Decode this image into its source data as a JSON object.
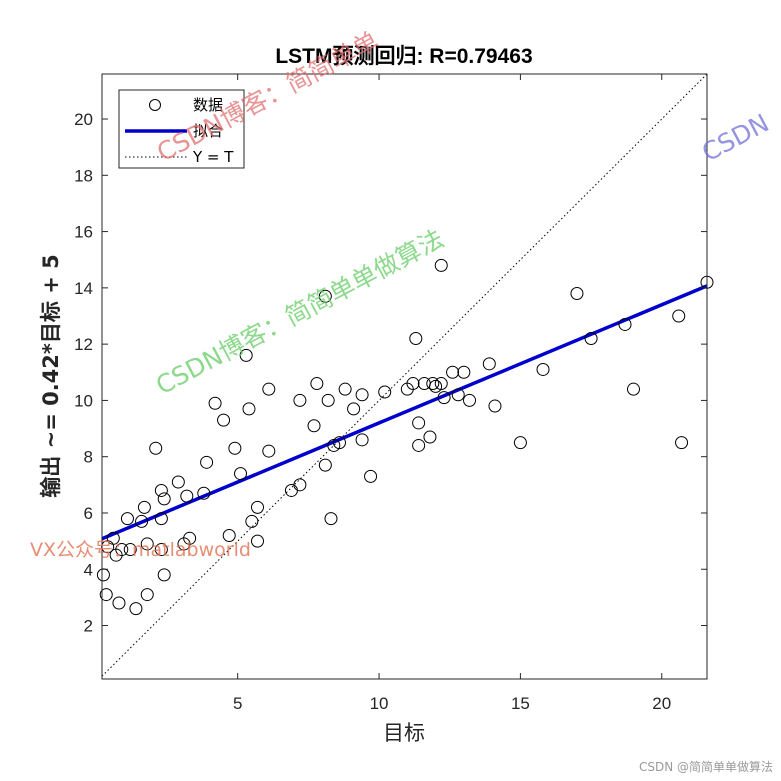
{
  "chart_data": {
    "type": "scatter",
    "title": "LSTM预测回归: R=0.79463",
    "xlabel": "目标",
    "ylabel": "输出 ~= 0.42*目标 + 5",
    "xlim": [
      0.2,
      21.6
    ],
    "ylim": [
      0.1,
      21.6
    ],
    "xticks": [
      5,
      10,
      15,
      20
    ],
    "yticks": [
      2,
      4,
      6,
      8,
      10,
      12,
      14,
      16,
      18,
      20
    ],
    "grid": false,
    "legend": {
      "position": "top-left",
      "entries": [
        "数据",
        "拟合",
        "Y = T"
      ]
    },
    "fit": {
      "slope": 0.42,
      "intercept": 5.0,
      "x_range": [
        0.2,
        21.6
      ],
      "color": "#0000cc"
    },
    "identity_line": {
      "color": "#000000",
      "style": "dotted"
    },
    "points": [
      [
        0.25,
        3.8
      ],
      [
        0.35,
        3.1
      ],
      [
        0.4,
        4.8
      ],
      [
        0.6,
        5.1
      ],
      [
        0.7,
        4.5
      ],
      [
        0.8,
        2.8
      ],
      [
        0.9,
        4.7
      ],
      [
        1.1,
        5.8
      ],
      [
        1.2,
        4.7
      ],
      [
        1.4,
        2.6
      ],
      [
        1.6,
        5.7
      ],
      [
        1.7,
        6.2
      ],
      [
        1.8,
        4.9
      ],
      [
        1.8,
        3.1
      ],
      [
        2.1,
        8.3
      ],
      [
        2.3,
        5.8
      ],
      [
        2.3,
        6.8
      ],
      [
        2.3,
        4.7
      ],
      [
        2.4,
        6.5
      ],
      [
        2.4,
        3.8
      ],
      [
        2.9,
        7.1
      ],
      [
        3.2,
        6.6
      ],
      [
        3.3,
        5.1
      ],
      [
        3.1,
        4.9
      ],
      [
        3.8,
        6.7
      ],
      [
        3.9,
        7.8
      ],
      [
        4.2,
        9.9
      ],
      [
        4.5,
        9.3
      ],
      [
        4.7,
        5.2
      ],
      [
        4.9,
        8.3
      ],
      [
        5.1,
        7.4
      ],
      [
        5.3,
        11.6
      ],
      [
        5.4,
        9.7
      ],
      [
        5.5,
        5.7
      ],
      [
        5.7,
        6.2
      ],
      [
        5.7,
        5.0
      ],
      [
        6.1,
        10.4
      ],
      [
        6.1,
        8.2
      ],
      [
        6.9,
        6.8
      ],
      [
        7.2,
        10.0
      ],
      [
        7.2,
        7.0
      ],
      [
        7.7,
        9.1
      ],
      [
        7.8,
        10.6
      ],
      [
        8.1,
        13.7
      ],
      [
        8.1,
        7.7
      ],
      [
        8.2,
        10.0
      ],
      [
        8.3,
        5.8
      ],
      [
        8.4,
        8.4
      ],
      [
        8.6,
        8.5
      ],
      [
        8.8,
        10.4
      ],
      [
        9.1,
        9.7
      ],
      [
        9.4,
        10.2
      ],
      [
        9.4,
        8.6
      ],
      [
        9.7,
        7.3
      ],
      [
        10.2,
        10.3
      ],
      [
        11.0,
        10.4
      ],
      [
        11.2,
        10.6
      ],
      [
        11.3,
        12.2
      ],
      [
        11.4,
        9.2
      ],
      [
        11.4,
        8.4
      ],
      [
        11.6,
        10.6
      ],
      [
        11.8,
        8.7
      ],
      [
        11.9,
        10.6
      ],
      [
        12.0,
        10.5
      ],
      [
        12.2,
        10.6
      ],
      [
        12.2,
        14.8
      ],
      [
        12.3,
        10.1
      ],
      [
        12.6,
        11.0
      ],
      [
        12.8,
        10.2
      ],
      [
        13.0,
        11.0
      ],
      [
        13.2,
        10.0
      ],
      [
        13.9,
        11.3
      ],
      [
        14.1,
        9.8
      ],
      [
        15.0,
        8.5
      ],
      [
        15.8,
        11.1
      ],
      [
        17.0,
        13.8
      ],
      [
        17.5,
        12.2
      ],
      [
        18.7,
        12.7
      ],
      [
        19.0,
        10.4
      ],
      [
        20.6,
        13.0
      ],
      [
        20.7,
        8.5
      ],
      [
        21.6,
        14.2
      ]
    ]
  },
  "watermarks": {
    "blog_red": "CSDN博客：简简单单",
    "blog_blue": "CSDN",
    "blog_green": "CSDN博客：简简单单做算法",
    "vx": "VX公众号：matlabworld"
  },
  "footer": "CSDN @简简单单做算法"
}
